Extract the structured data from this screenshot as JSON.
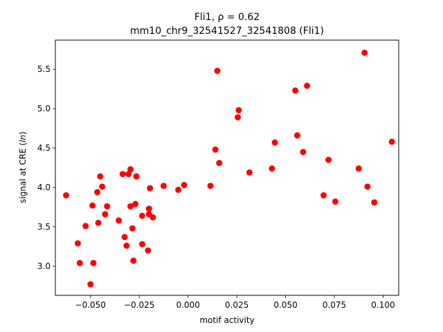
{
  "chart_data": {
    "type": "scatter",
    "title_line1": "Fli1, ρ = 0.62",
    "title_line2": "mm10_chr9_32541527_32541808 (Fli1)",
    "xlabel": "motif activity",
    "ylabel": "signal at CRE (ln)",
    "xlim": [
      -0.068,
      0.108
    ],
    "ylim": [
      2.63,
      5.87
    ],
    "xticks": [
      -0.05,
      -0.025,
      0.0,
      0.025,
      0.05,
      0.075,
      0.1
    ],
    "xtick_labels": [
      "−0.050",
      "−0.025",
      "0.000",
      "0.025",
      "0.050",
      "0.075",
      "0.100"
    ],
    "yticks": [
      3.0,
      3.5,
      4.0,
      4.5,
      5.0,
      5.5
    ],
    "ytick_labels": [
      "3.0",
      "3.5",
      "4.0",
      "4.5",
      "5.0",
      "5.5"
    ],
    "grid": false,
    "legend": "none",
    "marker_color": "#ff0000",
    "points": [
      {
        "x": -0.0625,
        "y": 3.9
      },
      {
        "x": -0.0565,
        "y": 3.29
      },
      {
        "x": -0.0555,
        "y": 3.04
      },
      {
        "x": -0.0525,
        "y": 3.51
      },
      {
        "x": -0.05,
        "y": 2.77
      },
      {
        "x": -0.049,
        "y": 3.77
      },
      {
        "x": -0.0485,
        "y": 3.04
      },
      {
        "x": -0.0465,
        "y": 3.94
      },
      {
        "x": -0.046,
        "y": 3.55
      },
      {
        "x": -0.045,
        "y": 4.14
      },
      {
        "x": -0.044,
        "y": 4.01
      },
      {
        "x": -0.0425,
        "y": 3.66
      },
      {
        "x": -0.0415,
        "y": 3.76
      },
      {
        "x": -0.0355,
        "y": 3.58
      },
      {
        "x": -0.0335,
        "y": 4.17
      },
      {
        "x": -0.0325,
        "y": 3.37
      },
      {
        "x": -0.0315,
        "y": 3.26
      },
      {
        "x": -0.0305,
        "y": 4.17
      },
      {
        "x": -0.0295,
        "y": 4.23
      },
      {
        "x": -0.0295,
        "y": 3.76
      },
      {
        "x": -0.0285,
        "y": 3.48
      },
      {
        "x": -0.028,
        "y": 3.07
      },
      {
        "x": -0.027,
        "y": 3.79
      },
      {
        "x": -0.0265,
        "y": 4.14
      },
      {
        "x": -0.0235,
        "y": 3.64
      },
      {
        "x": -0.0235,
        "y": 3.28
      },
      {
        "x": -0.0205,
        "y": 3.2
      },
      {
        "x": -0.02,
        "y": 3.66
      },
      {
        "x": -0.02,
        "y": 3.73
      },
      {
        "x": -0.0195,
        "y": 3.99
      },
      {
        "x": -0.018,
        "y": 3.62
      },
      {
        "x": -0.0125,
        "y": 4.02
      },
      {
        "x": -0.005,
        "y": 3.97
      },
      {
        "x": -0.002,
        "y": 4.03
      },
      {
        "x": 0.0115,
        "y": 4.02
      },
      {
        "x": 0.014,
        "y": 4.48
      },
      {
        "x": 0.015,
        "y": 5.48
      },
      {
        "x": 0.016,
        "y": 4.31
      },
      {
        "x": 0.0255,
        "y": 4.89
      },
      {
        "x": 0.026,
        "y": 4.98
      },
      {
        "x": 0.0315,
        "y": 4.19
      },
      {
        "x": 0.043,
        "y": 4.24
      },
      {
        "x": 0.0445,
        "y": 4.57
      },
      {
        "x": 0.055,
        "y": 5.23
      },
      {
        "x": 0.056,
        "y": 4.66
      },
      {
        "x": 0.059,
        "y": 4.45
      },
      {
        "x": 0.061,
        "y": 5.29
      },
      {
        "x": 0.0695,
        "y": 3.9
      },
      {
        "x": 0.072,
        "y": 4.35
      },
      {
        "x": 0.0755,
        "y": 3.82
      },
      {
        "x": 0.0875,
        "y": 4.24
      },
      {
        "x": 0.0905,
        "y": 5.71
      },
      {
        "x": 0.092,
        "y": 4.01
      },
      {
        "x": 0.0955,
        "y": 3.81
      },
      {
        "x": 0.1045,
        "y": 4.58
      }
    ]
  }
}
